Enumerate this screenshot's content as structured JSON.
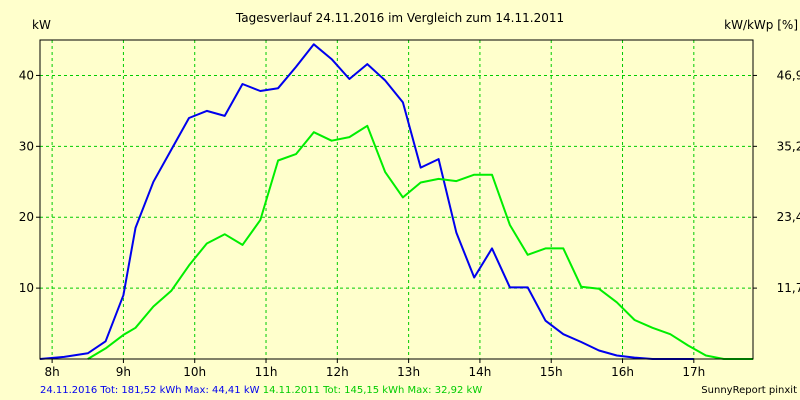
{
  "chart_data": {
    "type": "line",
    "title": "Tagesverlauf 24.11.2016 im Vergleich zum 14.11.2011",
    "ylabel_left": "kW",
    "ylabel_right": "kW/kWp [%]",
    "xlim": [
      7.83,
      17.83
    ],
    "ylim": [
      0,
      45
    ],
    "grid": true,
    "x_ticks": [
      {
        "v": 8,
        "label": "8h"
      },
      {
        "v": 9,
        "label": "9h"
      },
      {
        "v": 10,
        "label": "10h"
      },
      {
        "v": 11,
        "label": "11h"
      },
      {
        "v": 12,
        "label": "12h"
      },
      {
        "v": 13,
        "label": "13h"
      },
      {
        "v": 14,
        "label": "14h"
      },
      {
        "v": 15,
        "label": "15h"
      },
      {
        "v": 16,
        "label": "16h"
      },
      {
        "v": 17,
        "label": "17h"
      }
    ],
    "y_ticks_left": [
      {
        "v": 10,
        "label": "10"
      },
      {
        "v": 20,
        "label": "20"
      },
      {
        "v": 30,
        "label": "30"
      },
      {
        "v": 40,
        "label": "40"
      }
    ],
    "y_ticks_right": [
      {
        "v": 10,
        "label": "11,7"
      },
      {
        "v": 20,
        "label": "23,4"
      },
      {
        "v": 30,
        "label": "35,2"
      },
      {
        "v": 40,
        "label": "46,9"
      }
    ],
    "series": [
      {
        "legend": "24.11.2016 Tot: 181,52 kWh Max: 44,41 kW",
        "color": "#0000ee",
        "x": [
          7.83,
          8.17,
          8.5,
          8.75,
          9.0,
          9.17,
          9.42,
          9.67,
          9.92,
          10.17,
          10.42,
          10.67,
          10.92,
          11.17,
          11.42,
          11.67,
          11.92,
          12.17,
          12.42,
          12.67,
          12.92,
          13.17,
          13.42,
          13.67,
          13.92,
          14.17,
          14.42,
          14.67,
          14.92,
          15.17,
          15.42,
          15.67,
          15.92,
          16.17,
          16.42,
          16.67,
          17.0
        ],
        "y": [
          0.0,
          0.3,
          0.8,
          2.5,
          9.0,
          18.5,
          25.0,
          29.5,
          34.0,
          35.0,
          34.3,
          38.8,
          37.8,
          38.2,
          41.2,
          44.4,
          42.3,
          39.5,
          41.6,
          39.3,
          36.2,
          27.0,
          28.2,
          17.8,
          11.5,
          15.6,
          10.1,
          10.1,
          5.4,
          3.5,
          2.4,
          1.2,
          0.5,
          0.2,
          0.0,
          0.0,
          0.0
        ]
      },
      {
        "legend": "14.11.2011 Tot: 145,15 kWh Max: 32,92 kW",
        "color": "#00ee00",
        "x": [
          8.5,
          8.75,
          9.0,
          9.17,
          9.42,
          9.67,
          9.92,
          10.17,
          10.42,
          10.67,
          10.92,
          11.17,
          11.42,
          11.67,
          11.92,
          12.17,
          12.42,
          12.67,
          12.92,
          13.17,
          13.42,
          13.67,
          13.92,
          14.17,
          14.42,
          14.67,
          14.92,
          15.17,
          15.42,
          15.67,
          15.92,
          16.17,
          16.42,
          16.67,
          16.92,
          17.17,
          17.42,
          17.83
        ],
        "y": [
          0.0,
          1.5,
          3.4,
          4.4,
          7.4,
          9.6,
          13.2,
          16.3,
          17.6,
          16.1,
          19.6,
          28.0,
          28.9,
          32.0,
          30.8,
          31.3,
          32.9,
          26.4,
          22.8,
          24.9,
          25.4,
          25.1,
          26.0,
          26.0,
          18.9,
          14.7,
          15.6,
          15.6,
          10.2,
          9.9,
          8.0,
          5.5,
          4.4,
          3.5,
          1.9,
          0.5,
          0.0,
          0.0
        ]
      }
    ]
  },
  "footer": {
    "brand": "SunnyReport pinxit"
  },
  "colors": {
    "background": "#ffffcc",
    "grid": "#00cc00",
    "axis": "#000000"
  }
}
